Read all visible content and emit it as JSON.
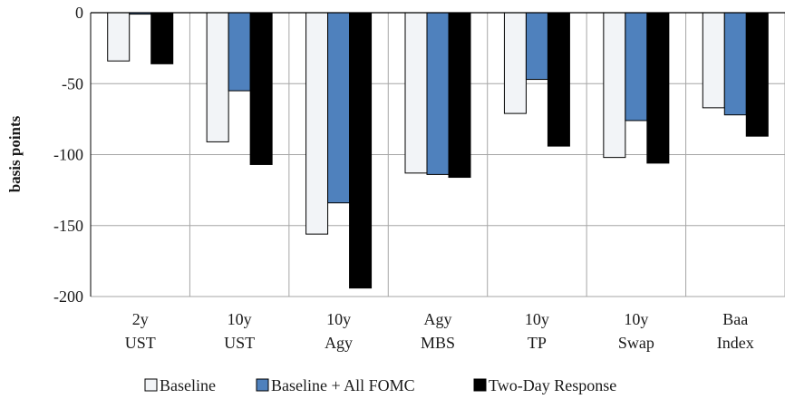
{
  "chart_data": {
    "type": "bar",
    "ylabel": "basis points",
    "xlabel": "",
    "ylim": [
      -200,
      0
    ],
    "yticks": [
      0,
      -50,
      -100,
      -150,
      -200
    ],
    "grid": true,
    "legend_position": "bottom",
    "categories": [
      [
        "2y",
        "UST"
      ],
      [
        "10y",
        "UST"
      ],
      [
        "10y",
        "Agy"
      ],
      [
        "Agy",
        "MBS"
      ],
      [
        "10y",
        "TP"
      ],
      [
        "10y",
        "Swap"
      ],
      [
        "Baa",
        "Index"
      ]
    ],
    "series": [
      {
        "name": "Baseline",
        "color": "#f2f4f7",
        "values": [
          -34,
          -91,
          -156,
          -113,
          -71,
          -102,
          -67
        ]
      },
      {
        "name": "Baseline + All FOMC",
        "color": "#4f81bd",
        "values": [
          -1,
          -55,
          -134,
          -114,
          -47,
          -76,
          -72
        ]
      },
      {
        "name": "Two-Day Response",
        "color": "#000000",
        "values": [
          -36,
          -107,
          -194,
          -116,
          -94,
          -106,
          -87
        ]
      }
    ]
  }
}
